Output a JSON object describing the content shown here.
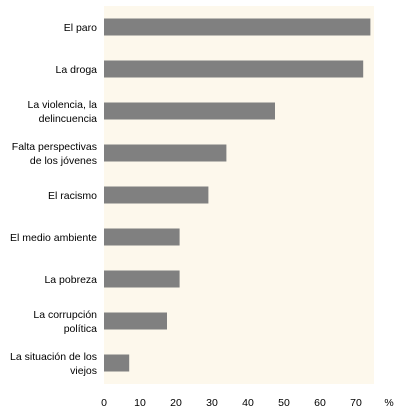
{
  "chart_data": {
    "type": "bar",
    "orientation": "horizontal",
    "categories": [
      [
        "El paro"
      ],
      [
        "La droga"
      ],
      [
        "La violencia, la",
        "delincuencia"
      ],
      [
        "Falta perspectivas",
        "de los jóvenes"
      ],
      [
        "El racismo"
      ],
      [
        "El medio ambiente"
      ],
      [
        "La pobreza"
      ],
      [
        "La corrupción",
        "política"
      ],
      [
        "La situación de los",
        "viejos"
      ]
    ],
    "values": [
      74,
      72,
      47.5,
      34,
      29,
      21,
      21,
      17.5,
      7
    ],
    "title": "",
    "xlabel": "",
    "ylabel": "",
    "unit_label": "%",
    "xlim": [
      0,
      75
    ],
    "xticks": [
      0,
      10,
      20,
      30,
      40,
      50,
      60,
      70
    ],
    "grid": false,
    "colors": {
      "bar": "#808080",
      "plot_background": "#fdf8ec",
      "text": "#000000"
    }
  }
}
